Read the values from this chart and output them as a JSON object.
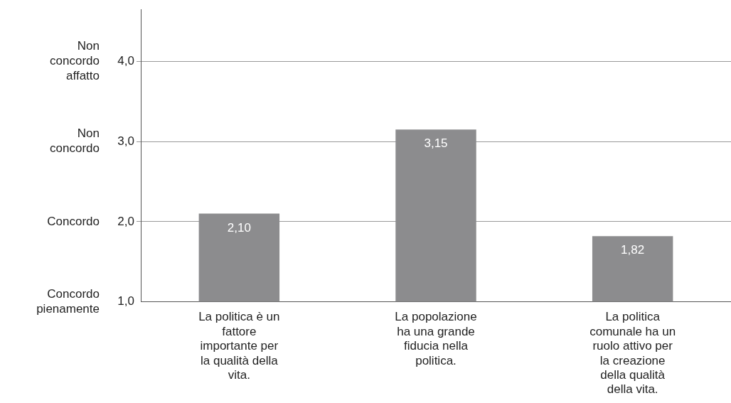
{
  "chart_data": {
    "type": "bar",
    "categories": [
      "La politica è un fattore importante per la qualità della vita.",
      "La popolazione ha una grande fiducia nella politica.",
      "La politica comunale ha un ruolo attivo per la creazione della qualità della vita."
    ],
    "values": [
      2.1,
      3.15,
      1.82
    ],
    "color": "#8c8c8e",
    "value_labels": [
      "2,10",
      "3,15",
      "1,82"
    ],
    "ylim": [
      1,
      4.65
    ],
    "yticks": [
      {
        "value": 1,
        "label": "1,0"
      },
      {
        "value": 2,
        "label": "2,0"
      },
      {
        "value": 3,
        "label": "3,0"
      },
      {
        "value": 4,
        "label": "4,0"
      }
    ],
    "grid": "y",
    "annotations": [
      "Non concordo affatto",
      "Non concordo",
      "Concordo",
      "Concordo pienamente"
    ]
  }
}
